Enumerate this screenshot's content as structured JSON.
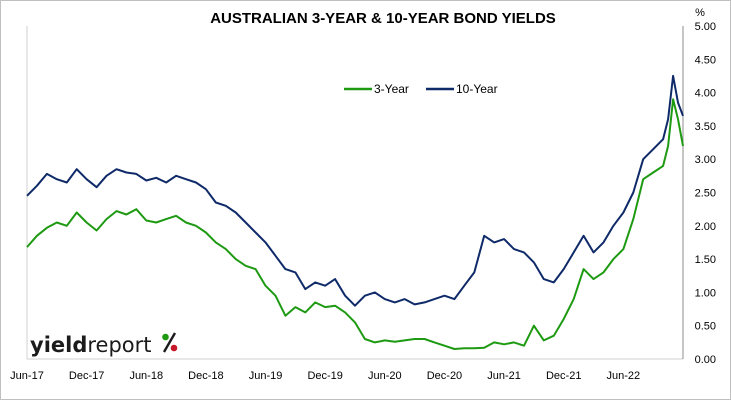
{
  "chart_data": {
    "type": "line",
    "title": "AUSTRALIAN 3-YEAR & 10-YEAR BOND YIELDS",
    "y_unit": "%",
    "ylim": [
      0,
      5
    ],
    "y_ticks": [
      "0.00",
      "0.50",
      "1.00",
      "1.50",
      "2.00",
      "2.50",
      "3.00",
      "3.50",
      "4.00",
      "4.50",
      "5.00"
    ],
    "x_ticks": [
      "Jun-17",
      "Dec-17",
      "Jun-18",
      "Dec-18",
      "Jun-19",
      "Dec-19",
      "Jun-20",
      "Dec-20",
      "Jun-21",
      "Dec-21",
      "Jun-22"
    ],
    "grid": false,
    "legend": "top-center",
    "series": [
      {
        "name": "3-Year",
        "color": "#1e9a12",
        "values": [
          [
            0,
            1.68
          ],
          [
            1,
            1.85
          ],
          [
            2,
            1.97
          ],
          [
            3,
            2.05
          ],
          [
            4,
            2.0
          ],
          [
            5,
            2.2
          ],
          [
            6,
            2.05
          ],
          [
            7,
            1.93
          ],
          [
            8,
            2.1
          ],
          [
            9,
            2.22
          ],
          [
            10,
            2.17
          ],
          [
            11,
            2.25
          ],
          [
            12,
            2.08
          ],
          [
            13,
            2.05
          ],
          [
            14,
            2.1
          ],
          [
            15,
            2.15
          ],
          [
            16,
            2.05
          ],
          [
            17,
            2.0
          ],
          [
            18,
            1.9
          ],
          [
            19,
            1.75
          ],
          [
            20,
            1.65
          ],
          [
            21,
            1.5
          ],
          [
            22,
            1.4
          ],
          [
            23,
            1.35
          ],
          [
            24,
            1.1
          ],
          [
            25,
            0.95
          ],
          [
            26,
            0.65
          ],
          [
            27,
            0.78
          ],
          [
            28,
            0.7
          ],
          [
            29,
            0.85
          ],
          [
            30,
            0.78
          ],
          [
            31,
            0.8
          ],
          [
            32,
            0.7
          ],
          [
            33,
            0.55
          ],
          [
            34,
            0.3
          ],
          [
            35,
            0.25
          ],
          [
            36,
            0.28
          ],
          [
            37,
            0.26
          ],
          [
            38,
            0.28
          ],
          [
            39,
            0.3
          ],
          [
            40,
            0.3
          ],
          [
            41,
            0.25
          ],
          [
            42,
            0.2
          ],
          [
            43,
            0.15
          ],
          [
            44,
            0.16
          ],
          [
            45,
            0.16
          ],
          [
            46,
            0.17
          ],
          [
            47,
            0.25
          ],
          [
            48,
            0.22
          ],
          [
            49,
            0.25
          ],
          [
            50,
            0.2
          ],
          [
            51,
            0.5
          ],
          [
            52,
            0.28
          ],
          [
            53,
            0.35
          ],
          [
            54,
            0.6
          ],
          [
            55,
            0.9
          ],
          [
            56,
            1.35
          ],
          [
            57,
            1.2
          ],
          [
            58,
            1.3
          ],
          [
            59,
            1.5
          ],
          [
            60,
            1.65
          ],
          [
            61,
            2.1
          ],
          [
            62,
            2.7
          ],
          [
            63,
            2.8
          ],
          [
            64,
            2.9
          ],
          [
            64.5,
            3.2
          ],
          [
            65,
            3.9
          ],
          [
            65.5,
            3.6
          ],
          [
            66,
            3.2
          ]
        ]
      },
      {
        "name": "10-Year",
        "color": "#0f2a68",
        "values": [
          [
            0,
            2.45
          ],
          [
            1,
            2.6
          ],
          [
            2,
            2.78
          ],
          [
            3,
            2.7
          ],
          [
            4,
            2.65
          ],
          [
            5,
            2.85
          ],
          [
            6,
            2.7
          ],
          [
            7,
            2.58
          ],
          [
            8,
            2.75
          ],
          [
            9,
            2.85
          ],
          [
            10,
            2.8
          ],
          [
            11,
            2.78
          ],
          [
            12,
            2.68
          ],
          [
            13,
            2.72
          ],
          [
            14,
            2.65
          ],
          [
            15,
            2.75
          ],
          [
            16,
            2.7
          ],
          [
            17,
            2.65
          ],
          [
            18,
            2.55
          ],
          [
            19,
            2.35
          ],
          [
            20,
            2.3
          ],
          [
            21,
            2.2
          ],
          [
            22,
            2.05
          ],
          [
            23,
            1.9
          ],
          [
            24,
            1.75
          ],
          [
            25,
            1.55
          ],
          [
            26,
            1.35
          ],
          [
            27,
            1.3
          ],
          [
            28,
            1.05
          ],
          [
            29,
            1.15
          ],
          [
            30,
            1.1
          ],
          [
            31,
            1.2
          ],
          [
            32,
            0.95
          ],
          [
            33,
            0.8
          ],
          [
            34,
            0.95
          ],
          [
            35,
            1.0
          ],
          [
            36,
            0.9
          ],
          [
            37,
            0.85
          ],
          [
            38,
            0.9
          ],
          [
            39,
            0.82
          ],
          [
            40,
            0.85
          ],
          [
            41,
            0.9
          ],
          [
            42,
            0.95
          ],
          [
            43,
            0.9
          ],
          [
            44,
            1.1
          ],
          [
            45,
            1.3
          ],
          [
            46,
            1.85
          ],
          [
            47,
            1.75
          ],
          [
            48,
            1.8
          ],
          [
            49,
            1.65
          ],
          [
            50,
            1.6
          ],
          [
            51,
            1.45
          ],
          [
            52,
            1.2
          ],
          [
            53,
            1.15
          ],
          [
            54,
            1.35
          ],
          [
            55,
            1.6
          ],
          [
            56,
            1.85
          ],
          [
            57,
            1.6
          ],
          [
            58,
            1.75
          ],
          [
            59,
            2.0
          ],
          [
            60,
            2.2
          ],
          [
            61,
            2.5
          ],
          [
            62,
            3.0
          ],
          [
            63,
            3.15
          ],
          [
            64,
            3.3
          ],
          [
            64.5,
            3.6
          ],
          [
            65,
            4.25
          ],
          [
            65.5,
            3.85
          ],
          [
            66,
            3.65
          ]
        ]
      }
    ]
  },
  "branding": {
    "word_bold": "yield",
    "word_regular": "report",
    "symbol": "%"
  }
}
